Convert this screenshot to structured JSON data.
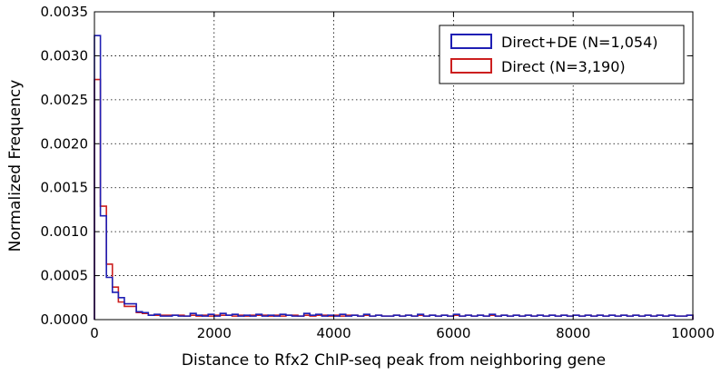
{
  "chart_data": {
    "type": "histogram",
    "title": "",
    "xlabel": "Distance to Rfx2 ChIP-seq peak from neighboring gene",
    "ylabel": "Normalized Frequency",
    "xlim": [
      0,
      10000
    ],
    "ylim": [
      0,
      0.0035
    ],
    "xticks": [
      0,
      2000,
      4000,
      6000,
      8000,
      10000
    ],
    "xtick_labels": [
      "0",
      "2000",
      "4000",
      "6000",
      "8000",
      "10000"
    ],
    "yticks": [
      0,
      0.0005,
      0.001,
      0.0015,
      0.002,
      0.0025,
      0.003,
      0.0035
    ],
    "ytick_labels": [
      "0.0000",
      "0.0005",
      "0.0010",
      "0.0015",
      "0.0020",
      "0.0025",
      "0.0030",
      "0.0035"
    ],
    "grid": true,
    "legend_position": "top-right",
    "bin_width": 100,
    "series": [
      {
        "name": "Direct+DE (N=1,054)",
        "color": "#1f1fb4",
        "values": [
          0.00323,
          0.00118,
          0.00048,
          0.00031,
          0.00025,
          0.00018,
          0.00018,
          9e-05,
          8e-05,
          5e-05,
          6e-05,
          4e-05,
          4e-05,
          5e-05,
          4e-05,
          4e-05,
          7e-05,
          5e-05,
          4e-05,
          6e-05,
          4e-05,
          7e-05,
          5e-05,
          6e-05,
          4e-05,
          5e-05,
          4e-05,
          6e-05,
          4e-05,
          5e-05,
          4e-05,
          6e-05,
          5e-05,
          4e-05,
          4e-05,
          7e-05,
          5e-05,
          6e-05,
          4e-05,
          5e-05,
          4e-05,
          6e-05,
          4e-05,
          5e-05,
          4e-05,
          6e-05,
          4e-05,
          5e-05,
          4e-05,
          4e-05,
          5e-05,
          4e-05,
          5e-05,
          4e-05,
          6e-05,
          4e-05,
          5e-05,
          4e-05,
          5e-05,
          4e-05,
          6e-05,
          4e-05,
          5e-05,
          4e-05,
          5e-05,
          4e-05,
          6e-05,
          4e-05,
          5e-05,
          4e-05,
          5e-05,
          4e-05,
          5e-05,
          4e-05,
          5e-05,
          4e-05,
          5e-05,
          4e-05,
          5e-05,
          4e-05,
          5e-05,
          4e-05,
          5e-05,
          4e-05,
          5e-05,
          4e-05,
          5e-05,
          4e-05,
          5e-05,
          4e-05,
          5e-05,
          4e-05,
          5e-05,
          4e-05,
          5e-05,
          4e-05,
          5e-05,
          4e-05,
          4e-05,
          5e-05
        ]
      },
      {
        "name": "Direct (N=3,190)",
        "color": "#cc1f1f",
        "values": [
          0.00273,
          0.00129,
          0.00063,
          0.00037,
          0.0002,
          0.00015,
          0.00015,
          8e-05,
          7e-05,
          5e-05,
          5e-05,
          5e-05,
          5e-05,
          5e-05,
          5e-05,
          4e-05,
          5e-05,
          4e-05,
          5e-05,
          4e-05,
          5e-05,
          5e-05,
          5e-05,
          4e-05,
          5e-05,
          4e-05,
          5e-05,
          5e-05,
          5e-05,
          4e-05,
          5e-05,
          4e-05,
          5e-05,
          5e-05,
          4e-05,
          5e-05,
          4e-05,
          5e-05,
          5e-05,
          4e-05,
          5e-05,
          4e-05,
          5e-05,
          5e-05,
          4e-05,
          5e-05,
          4e-05,
          5e-05,
          4e-05,
          4e-05,
          5e-05,
          4e-05,
          5e-05,
          4e-05,
          5e-05,
          4e-05,
          5e-05,
          4e-05,
          5e-05,
          4e-05,
          5e-05,
          4e-05,
          5e-05,
          4e-05,
          5e-05,
          4e-05,
          5e-05,
          4e-05,
          5e-05,
          4e-05,
          5e-05,
          4e-05,
          5e-05,
          4e-05,
          5e-05,
          4e-05,
          5e-05,
          4e-05,
          5e-05,
          4e-05,
          5e-05,
          4e-05,
          5e-05,
          4e-05,
          5e-05,
          4e-05,
          5e-05,
          4e-05,
          5e-05,
          4e-05,
          5e-05,
          4e-05,
          5e-05,
          4e-05,
          5e-05,
          4e-05,
          5e-05,
          4e-05,
          4e-05,
          5e-05
        ]
      }
    ]
  }
}
